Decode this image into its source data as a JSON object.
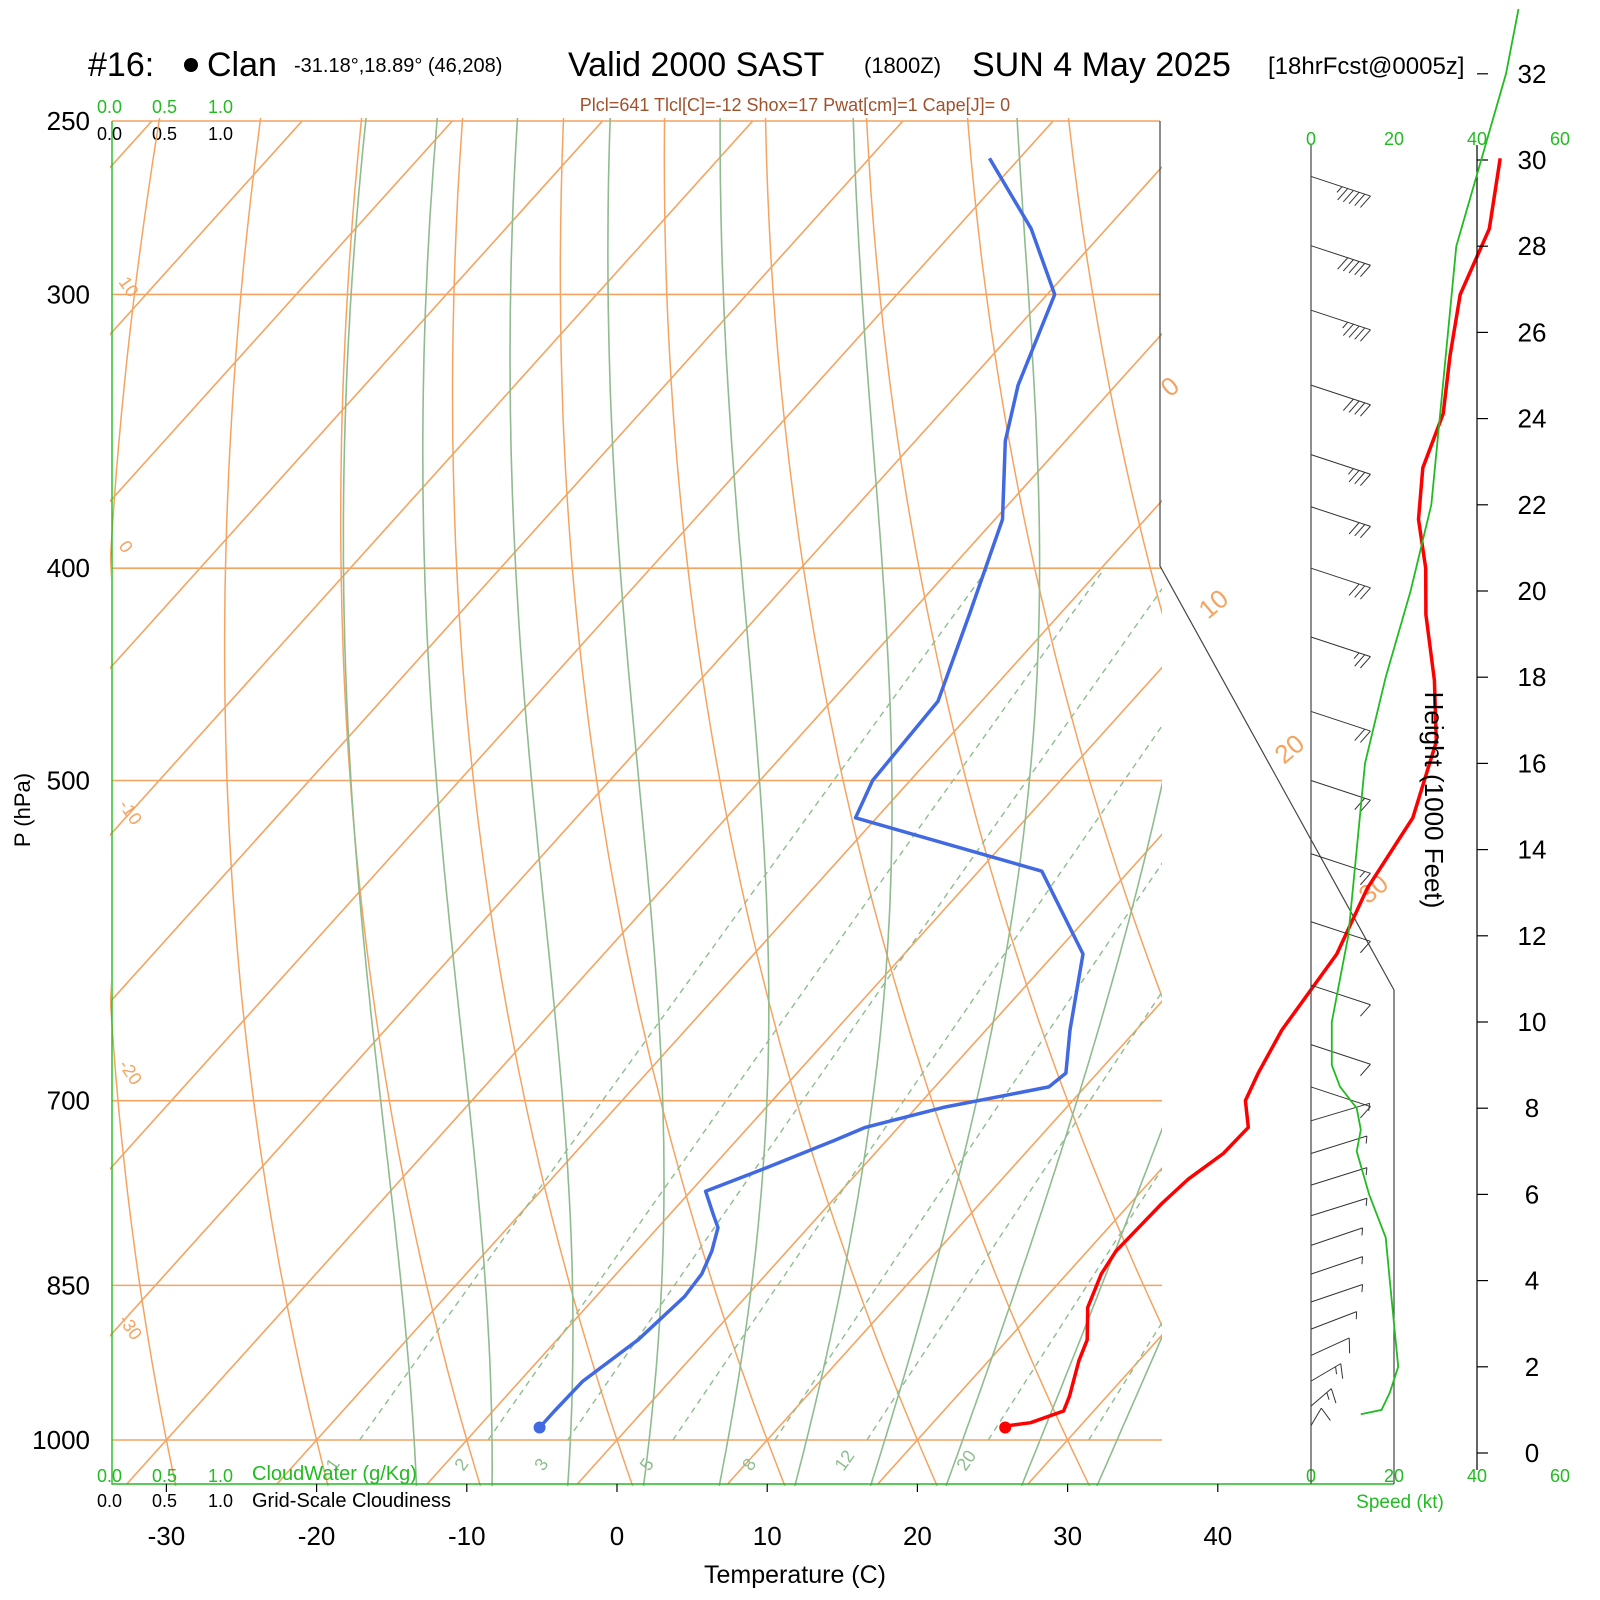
{
  "header": {
    "station_id": "#16:",
    "station_name": "Clan",
    "coords": "-31.18°,18.89° (46,208)",
    "valid": "Valid 2000 SAST",
    "zulu": "(1800Z)",
    "date": "SUN 4 May 2025",
    "forecast": "[18hrFcst@0005z]",
    "indices": "Plcl=641 Tlcl[C]=-12 Shox=17 Pwat[cm]=1 Cape[J]= 0"
  },
  "colors": {
    "isotherm": "#f4a460",
    "dry_adiabat": "#f4a460",
    "moist_adiabat": "#8fbc8f",
    "mixing_ratio": "#8fbc8f",
    "temperature": "#ff0000",
    "dewpoint": "#4169e1",
    "speed": "#22bb22",
    "scale_green": "#22bb22",
    "title_brown": "#a0522d",
    "barb": "#333333"
  },
  "scales": {
    "cloud_water_ticks": [
      "0.0",
      "0.5",
      "1.0"
    ],
    "cloud_water_label": "CloudWater (g/Kg)",
    "cloudiness_ticks": [
      "0.0",
      "0.5",
      "1.0"
    ],
    "cloudiness_label": "Grid-Scale Cloudiness",
    "speed_ticks": [
      "0",
      "20",
      "40",
      "60"
    ],
    "speed_label": "Speed (kt)"
  },
  "isopleth_labels": {
    "dry_adiabat_left": [
      "10",
      "0",
      "-10",
      "-20",
      "-30"
    ],
    "dry_adiabat_right": [
      "0",
      "10",
      "20",
      "30"
    ],
    "mixing_ratio": [
      "1",
      "2",
      "3",
      "5",
      "8",
      "12",
      "20"
    ]
  },
  "chart_data": {
    "type": "skew-t",
    "xlabel": "Temperature (C)",
    "ylabel": "P (hPa)",
    "right_ylabel": "Height (1000 Feet)",
    "x_ticks": [
      -30,
      -20,
      -10,
      0,
      10,
      20,
      30,
      40
    ],
    "p_ticks": [
      250,
      300,
      400,
      500,
      700,
      850,
      1000
    ],
    "height_ticks": [
      0,
      2,
      4,
      6,
      8,
      10,
      12,
      14,
      16,
      18,
      20,
      22,
      24,
      26,
      28,
      30,
      32
    ],
    "temperature": {
      "p": [
        987,
        985,
        982,
        970,
        955,
        920,
        900,
        870,
        840,
        820,
        800,
        780,
        760,
        740,
        720,
        700,
        680,
        650,
        600,
        560,
        520,
        480,
        450,
        420,
        400,
        380,
        360,
        340,
        320,
        300,
        280,
        260
      ],
      "t": [
        25.1,
        25.2,
        26.5,
        28.0,
        27.5,
        26.0,
        25.3,
        23.4,
        22.3,
        21.9,
        22.0,
        22.1,
        22.4,
        23.2,
        23.3,
        21.5,
        20.7,
        19.7,
        18.8,
        16.9,
        15.7,
        12.7,
        8.9,
        4.4,
        1.6,
        -1.8,
        -4.6,
        -6.5,
        -9.5,
        -12.5,
        -14.5,
        -18.0
      ]
    },
    "dewpoint": {
      "p": [
        987,
        970,
        940,
        900,
        860,
        840,
        820,
        800,
        790,
        770,
        750,
        730,
        720,
        705,
        690,
        680,
        650,
        600,
        550,
        520,
        500,
        460,
        420,
        380,
        350,
        330,
        300,
        280,
        260
      ],
      "td": [
        -5.9,
        -5.9,
        -5.8,
        -4.6,
        -4.1,
        -4.3,
        -5.0,
        -6.0,
        -7.0,
        -9.0,
        -6.2,
        -3.5,
        -2.2,
        1.8,
        7.6,
        7.9,
        5.6,
        1.9,
        -5.8,
        -21.4,
        -22.5,
        -22.9,
        -26.0,
        -29.5,
        -34.0,
        -36.5,
        -39.5,
        -45.0,
        -52.0
      ]
    },
    "speed_profile": {
      "height_kft": [
        0.9,
        1.0,
        1.4,
        2.0,
        3.0,
        4.0,
        5.0,
        6.0,
        7.0,
        7.5,
        8.0,
        8.5,
        9.0,
        10.0,
        11.0,
        12.0,
        14.0,
        16.0,
        18.0,
        20.0,
        22.0,
        24.0,
        26.0,
        28.0,
        30.0,
        32.0,
        33.5
      ],
      "speed_kt": [
        12,
        17,
        19,
        21,
        20,
        19,
        18,
        14,
        11,
        12,
        11,
        7,
        5,
        5,
        7,
        9,
        11,
        13,
        18,
        24,
        29,
        31,
        33,
        35,
        41,
        47,
        50
      ]
    },
    "wind_barbs": [
      {
        "p": 265,
        "spd": 55,
        "dir": 270
      },
      {
        "p": 285,
        "spd": 50,
        "dir": 270
      },
      {
        "p": 305,
        "spd": 45,
        "dir": 270
      },
      {
        "p": 330,
        "spd": 40,
        "dir": 270
      },
      {
        "p": 355,
        "spd": 35,
        "dir": 270
      },
      {
        "p": 375,
        "spd": 30,
        "dir": 270
      },
      {
        "p": 400,
        "spd": 30,
        "dir": 270
      },
      {
        "p": 430,
        "spd": 25,
        "dir": 270
      },
      {
        "p": 465,
        "spd": 22,
        "dir": 270
      },
      {
        "p": 500,
        "spd": 20,
        "dir": 270
      },
      {
        "p": 540,
        "spd": 15,
        "dir": 270
      },
      {
        "p": 580,
        "spd": 10,
        "dir": 270
      },
      {
        "p": 620,
        "spd": 10,
        "dir": 270
      },
      {
        "p": 660,
        "spd": 10,
        "dir": 270
      },
      {
        "p": 690,
        "spd": 10,
        "dir": 270
      },
      {
        "p": 715,
        "spd": 5,
        "dir": 260
      },
      {
        "p": 740,
        "spd": 5,
        "dir": 250
      },
      {
        "p": 765,
        "spd": 5,
        "dir": 250
      },
      {
        "p": 790,
        "spd": 5,
        "dir": 250
      },
      {
        "p": 815,
        "spd": 5,
        "dir": 240
      },
      {
        "p": 840,
        "spd": 5,
        "dir": 240
      },
      {
        "p": 865,
        "spd": 5,
        "dir": 240
      },
      {
        "p": 890,
        "spd": 5,
        "dir": 230
      },
      {
        "p": 915,
        "spd": 10,
        "dir": 220
      },
      {
        "p": 940,
        "spd": 15,
        "dir": 210
      },
      {
        "p": 965,
        "spd": 15,
        "dir": 200
      },
      {
        "p": 985,
        "spd": 10,
        "dir": 190
      }
    ]
  }
}
